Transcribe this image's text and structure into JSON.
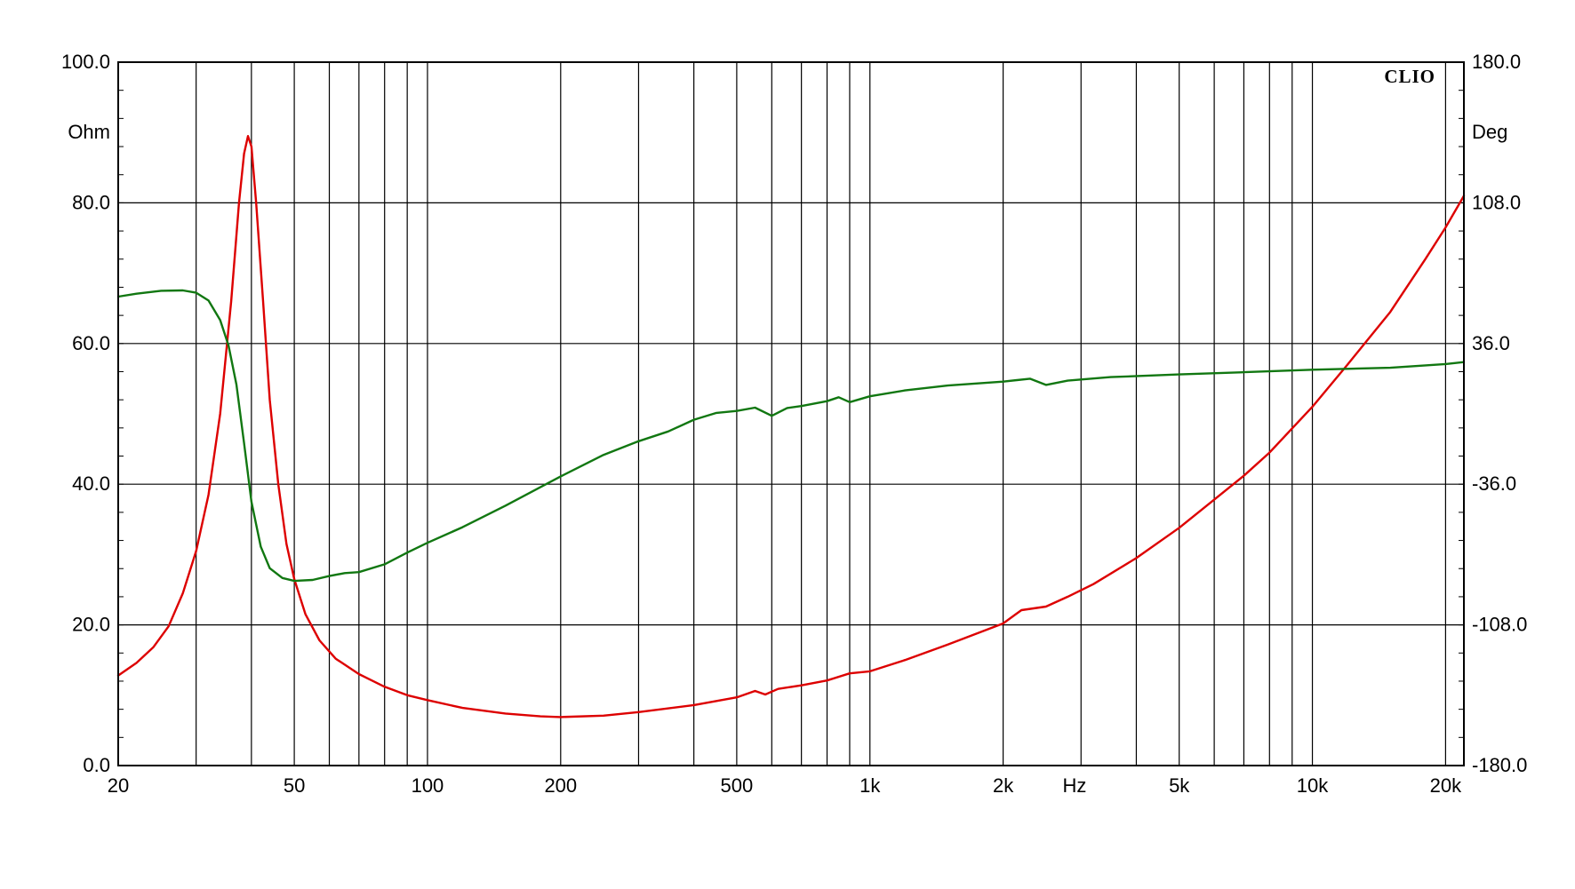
{
  "chart_data": {
    "type": "line",
    "brand": "CLIO",
    "x_scale": "log",
    "xlim": [
      20,
      22000
    ],
    "x_unit_label": "Hz",
    "x_ticks": [
      {
        "value": 20,
        "label": "20"
      },
      {
        "value": 50,
        "label": "50"
      },
      {
        "value": 100,
        "label": "100"
      },
      {
        "value": 200,
        "label": "200"
      },
      {
        "value": 500,
        "label": "500"
      },
      {
        "value": 1000,
        "label": "1k"
      },
      {
        "value": 2000,
        "label": "2k"
      },
      {
        "value": 5000,
        "label": "5k"
      },
      {
        "value": 10000,
        "label": "10k"
      },
      {
        "value": 20000,
        "label": "20k"
      }
    ],
    "x_gridlines": [
      20,
      30,
      40,
      50,
      60,
      70,
      80,
      90,
      100,
      200,
      300,
      400,
      500,
      600,
      700,
      800,
      900,
      1000,
      2000,
      3000,
      4000,
      5000,
      6000,
      7000,
      8000,
      9000,
      10000,
      20000
    ],
    "left_axis": {
      "unit": "Ohm",
      "ylim": [
        0,
        100
      ],
      "ticks": [
        {
          "value": 0,
          "label": "0.0"
        },
        {
          "value": 20,
          "label": "20.0"
        },
        {
          "value": 40,
          "label": "40.0"
        },
        {
          "value": 60,
          "label": "60.0"
        },
        {
          "value": 80,
          "label": "80.0"
        },
        {
          "value": 100,
          "label": "100.0"
        }
      ]
    },
    "right_axis": {
      "unit": "Deg",
      "ylim": [
        -180,
        180
      ],
      "ticks": [
        {
          "value": -180,
          "label": "-180.0"
        },
        {
          "value": -108,
          "label": "-108.0"
        },
        {
          "value": -36,
          "label": "-36.0"
        },
        {
          "value": 36,
          "label": "36.0"
        },
        {
          "value": 108,
          "label": "108.0"
        },
        {
          "value": 180,
          "label": "180.0"
        }
      ]
    },
    "grid": true,
    "series": [
      {
        "axis": "left",
        "color": "#dd0000",
        "points": [
          [
            20,
            12.8
          ],
          [
            22,
            14.6
          ],
          [
            24,
            16.8
          ],
          [
            26,
            19.8
          ],
          [
            28,
            24.5
          ],
          [
            30,
            30.5
          ],
          [
            32,
            38.5
          ],
          [
            34,
            50
          ],
          [
            36,
            66
          ],
          [
            37.5,
            80
          ],
          [
            38.5,
            87
          ],
          [
            39.3,
            89.5
          ],
          [
            40,
            88
          ],
          [
            41,
            80
          ],
          [
            42.5,
            66
          ],
          [
            44,
            52
          ],
          [
            46,
            40
          ],
          [
            48,
            31.5
          ],
          [
            50,
            26.5
          ],
          [
            53,
            21.5
          ],
          [
            57,
            17.8
          ],
          [
            62,
            15.2
          ],
          [
            70,
            13
          ],
          [
            80,
            11.2
          ],
          [
            90,
            10
          ],
          [
            100,
            9.3
          ],
          [
            120,
            8.2
          ],
          [
            150,
            7.4
          ],
          [
            180,
            7
          ],
          [
            200,
            6.9
          ],
          [
            250,
            7.1
          ],
          [
            300,
            7.6
          ],
          [
            400,
            8.6
          ],
          [
            500,
            9.7
          ],
          [
            550,
            10.6
          ],
          [
            580,
            10.1
          ],
          [
            620,
            10.9
          ],
          [
            700,
            11.4
          ],
          [
            800,
            12.1
          ],
          [
            900,
            13.1
          ],
          [
            1000,
            13.4
          ],
          [
            1200,
            15
          ],
          [
            1500,
            17.2
          ],
          [
            2000,
            20.2
          ],
          [
            2200,
            22.1
          ],
          [
            2500,
            22.6
          ],
          [
            2800,
            24
          ],
          [
            3200,
            25.8
          ],
          [
            4000,
            29.5
          ],
          [
            5000,
            33.8
          ],
          [
            6000,
            37.8
          ],
          [
            7000,
            41.2
          ],
          [
            8000,
            44.5
          ],
          [
            10000,
            51
          ],
          [
            12000,
            57
          ],
          [
            15000,
            64.5
          ],
          [
            18000,
            72
          ],
          [
            20000,
            76.5
          ],
          [
            22000,
            81
          ]
        ]
      },
      {
        "axis": "right",
        "color": "#117711",
        "points": [
          [
            20,
            60
          ],
          [
            22,
            61.5
          ],
          [
            25,
            63
          ],
          [
            28,
            63.2
          ],
          [
            30,
            62
          ],
          [
            32,
            58
          ],
          [
            34,
            48
          ],
          [
            35.5,
            35
          ],
          [
            37,
            15
          ],
          [
            38.5,
            -15
          ],
          [
            40,
            -45
          ],
          [
            42,
            -68
          ],
          [
            44,
            -79
          ],
          [
            47,
            -84
          ],
          [
            50,
            -85.5
          ],
          [
            55,
            -85
          ],
          [
            60,
            -83
          ],
          [
            65,
            -81.5
          ],
          [
            70,
            -81
          ],
          [
            80,
            -77
          ],
          [
            90,
            -71
          ],
          [
            100,
            -66
          ],
          [
            120,
            -58
          ],
          [
            150,
            -47
          ],
          [
            200,
            -32
          ],
          [
            250,
            -21
          ],
          [
            300,
            -14
          ],
          [
            350,
            -9
          ],
          [
            400,
            -3
          ],
          [
            450,
            0.5
          ],
          [
            500,
            1.5
          ],
          [
            550,
            3.2
          ],
          [
            600,
            -1
          ],
          [
            650,
            3
          ],
          [
            700,
            4
          ],
          [
            800,
            6.5
          ],
          [
            850,
            8.5
          ],
          [
            900,
            6
          ],
          [
            1000,
            9
          ],
          [
            1200,
            12
          ],
          [
            1500,
            14.5
          ],
          [
            2000,
            16.5
          ],
          [
            2300,
            18
          ],
          [
            2500,
            14.8
          ],
          [
            2800,
            17
          ],
          [
            3500,
            18.8
          ],
          [
            5000,
            20.2
          ],
          [
            7000,
            21.3
          ],
          [
            10000,
            22.6
          ],
          [
            15000,
            23.6
          ],
          [
            20000,
            25.5
          ],
          [
            22000,
            26.5
          ]
        ]
      }
    ]
  }
}
